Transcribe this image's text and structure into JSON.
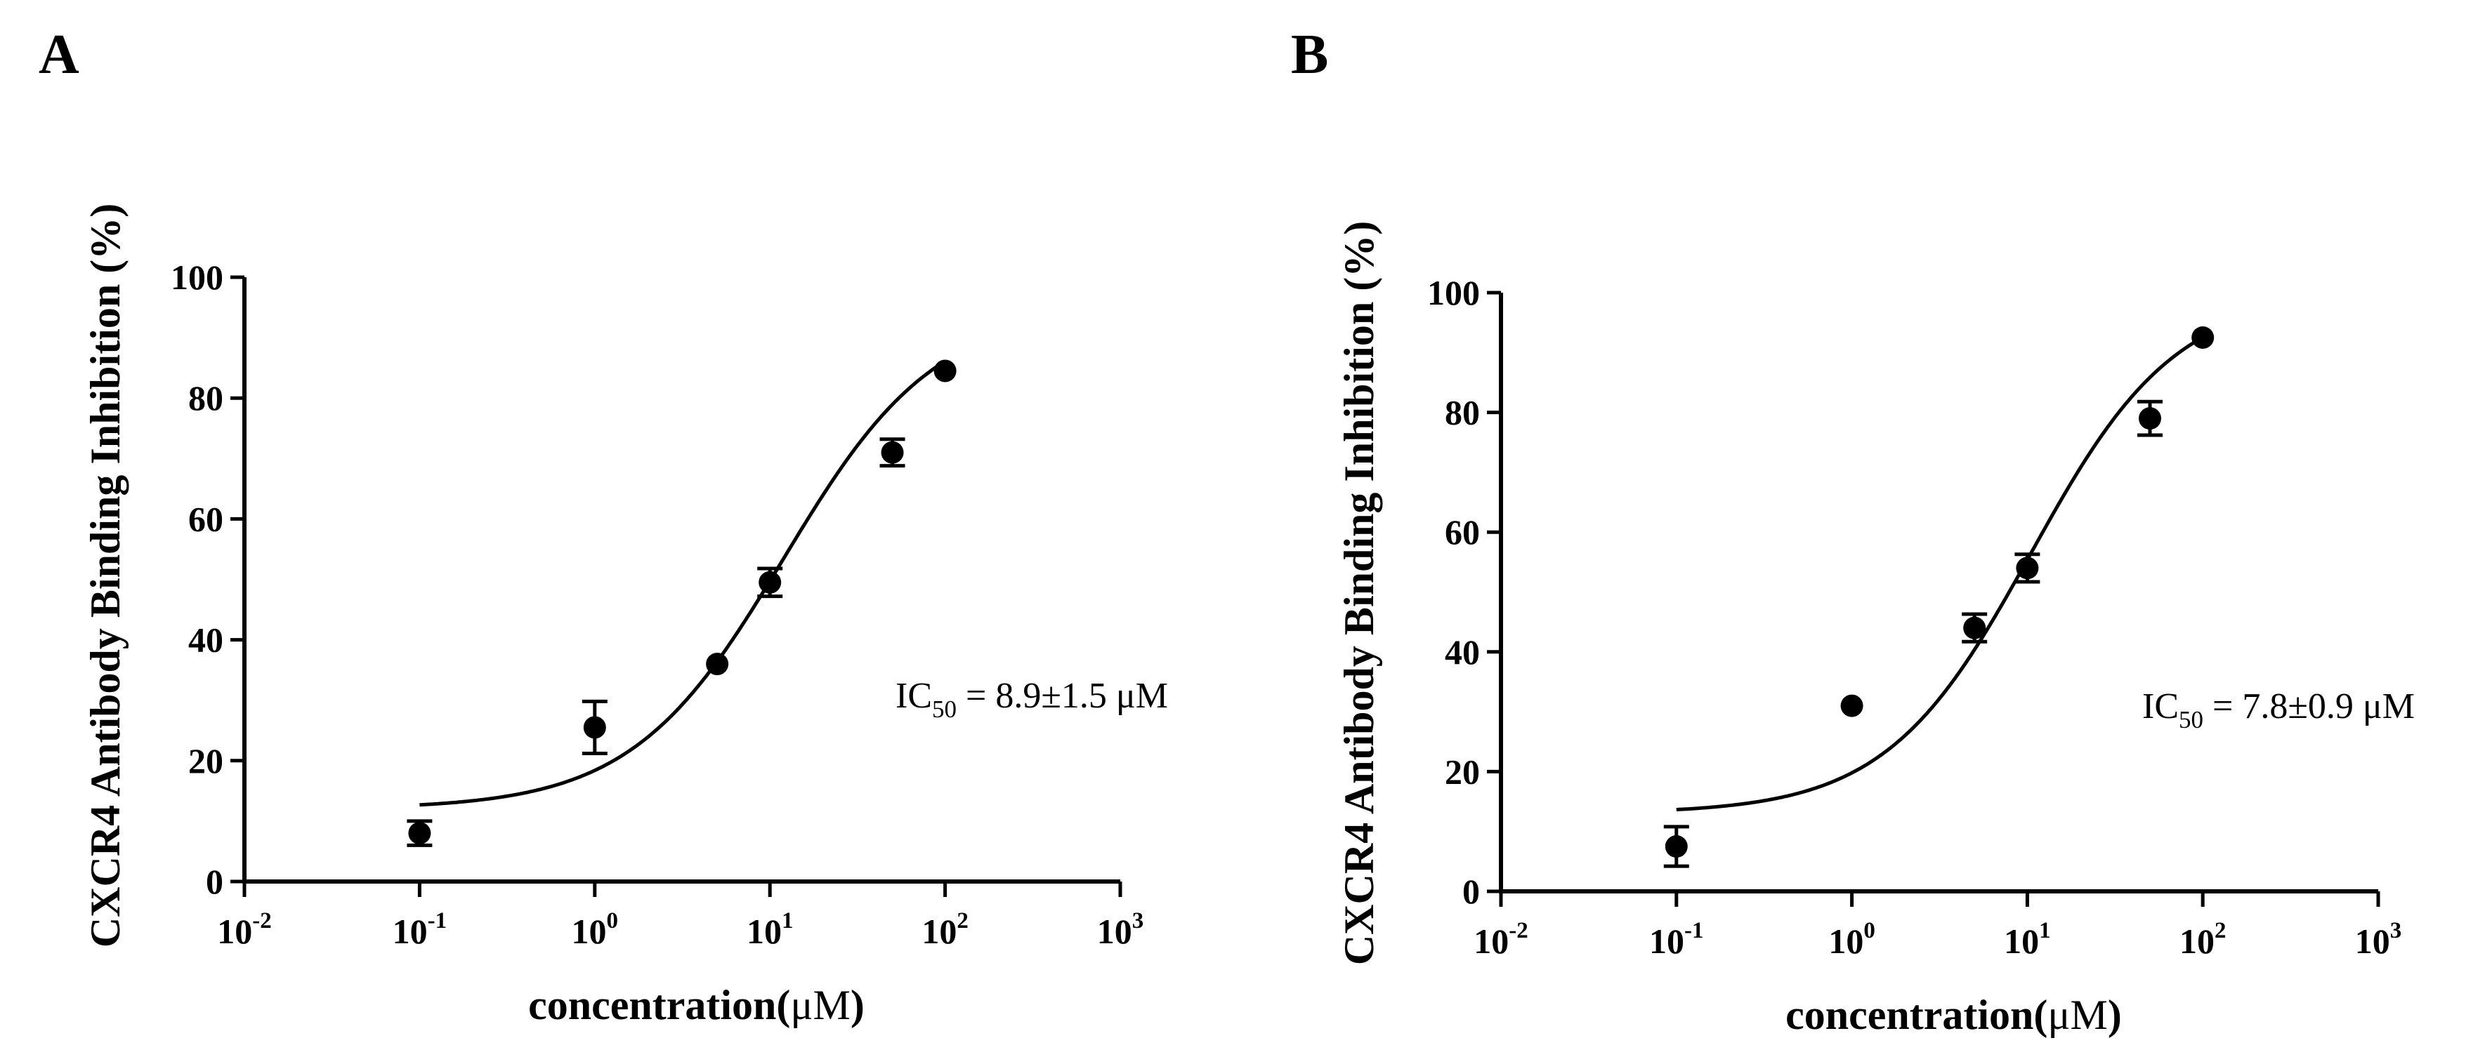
{
  "chart_data": [
    {
      "panel": "A",
      "type": "scatter",
      "ylabel": "CXCR4 Antibody Binding Inhibition (%)",
      "xlabel_main": "concentration(",
      "xlabel_unit": "μM",
      "xlabel_close": ")",
      "xscale": "log",
      "xlim": [
        0.01,
        1000
      ],
      "ylim": [
        0,
        100
      ],
      "yticks": [
        0,
        20,
        40,
        60,
        80,
        100
      ],
      "xticks": [
        {
          "value": 0.01,
          "base": "10",
          "exp": "-2"
        },
        {
          "value": 0.1,
          "base": "10",
          "exp": "-1"
        },
        {
          "value": 1,
          "base": "10",
          "exp": "0"
        },
        {
          "value": 10,
          "base": "10",
          "exp": "1"
        },
        {
          "value": 100,
          "base": "10",
          "exp": "2"
        },
        {
          "value": 1000,
          "base": "10",
          "exp": "3"
        }
      ],
      "points": [
        {
          "x": 0.1,
          "y": 8,
          "err": 2
        },
        {
          "x": 1,
          "y": 25.5,
          "err": 4.3
        },
        {
          "x": 5,
          "y": 36,
          "err": 0.8
        },
        {
          "x": 10,
          "y": 49.5,
          "err": 2.3
        },
        {
          "x": 50,
          "y": 71,
          "err": 2.2
        },
        {
          "x": 100,
          "y": 84.5,
          "err": 0.8
        }
      ],
      "fit": {
        "bottom": 12,
        "top": 95,
        "ec50": 12,
        "hill": 1.0,
        "xmin": 0.1,
        "xmax": 100
      },
      "annotation": {
        "prefix": "IC",
        "sub": "50",
        "text": " = 8.9±1.5 μM"
      }
    },
    {
      "panel": "B",
      "type": "scatter",
      "ylabel": "CXCR4 Antibody Binding Inhibition (%)",
      "xlabel_main": "concentration(",
      "xlabel_unit": "μM",
      "xlabel_close": ")",
      "xscale": "log",
      "xlim": [
        0.01,
        1000
      ],
      "ylim": [
        0,
        100
      ],
      "yticks": [
        0,
        20,
        40,
        60,
        80,
        100
      ],
      "xticks": [
        {
          "value": 0.01,
          "base": "10",
          "exp": "-2"
        },
        {
          "value": 0.1,
          "base": "10",
          "exp": "-1"
        },
        {
          "value": 1,
          "base": "10",
          "exp": "0"
        },
        {
          "value": 10,
          "base": "10",
          "exp": "1"
        },
        {
          "value": 100,
          "base": "10",
          "exp": "2"
        },
        {
          "value": 1000,
          "base": "10",
          "exp": "3"
        }
      ],
      "points": [
        {
          "x": 0.1,
          "y": 7.5,
          "err": 3.3
        },
        {
          "x": 1,
          "y": 31,
          "err": 0.8
        },
        {
          "x": 5,
          "y": 44,
          "err": 2.3
        },
        {
          "x": 10,
          "y": 54,
          "err": 2.3
        },
        {
          "x": 50,
          "y": 79,
          "err": 2.8
        },
        {
          "x": 100,
          "y": 92.5,
          "err": 0.8
        }
      ],
      "fit": {
        "bottom": 13,
        "top": 100,
        "ec50": 10.5,
        "hill": 1.05,
        "xmin": 0.1,
        "xmax": 100
      },
      "annotation": {
        "prefix": "IC",
        "sub": "50",
        "text": " = 7.8±0.9 μM"
      }
    }
  ]
}
